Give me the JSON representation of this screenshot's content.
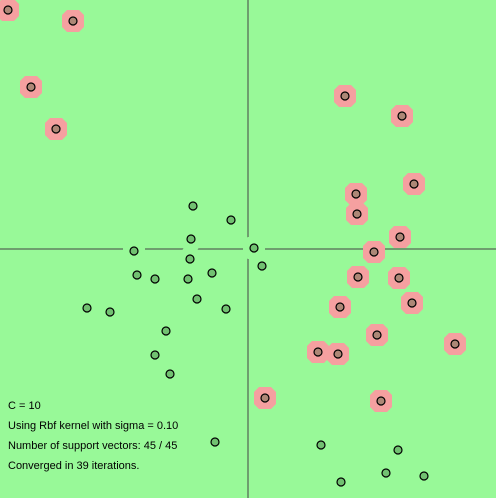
{
  "chart_data": {
    "type": "scatter",
    "background": "#98f998",
    "xlim": [
      -4.96,
      4.96
    ],
    "ylim": [
      -4.98,
      4.98
    ],
    "series": [
      {
        "color": "#f5a0a0",
        "x": [
          -4.8,
          -3.5,
          -4.34,
          -3.84,
          1.94,
          3.08,
          3.32,
          2.16,
          2.18,
          3.04,
          2.52,
          2.2,
          3.02,
          3.28,
          1.84,
          2.58,
          4.14,
          1.4,
          1.8,
          0.34,
          2.66
        ],
        "values": [
          4.78,
          4.56,
          3.24,
          2.4,
          3.06,
          2.66,
          1.3,
          1.1,
          0.7,
          0.24,
          -0.06,
          -0.56,
          -0.58,
          -1.08,
          -1.16,
          -1.72,
          -1.9,
          -2.06,
          -2.1,
          -2.98,
          -3.04
        ]
      },
      {
        "color": "#98f998",
        "x": [
          -1.1,
          -0.34,
          -1.14,
          -2.28,
          0.12,
          -1.16,
          0.28,
          -2.22,
          -1.86,
          -0.72,
          -1.2,
          -1.02,
          -3.22,
          -2.76,
          -0.44,
          -1.64,
          -1.86,
          -1.56,
          -0.66,
          1.46,
          3.0,
          2.76,
          3.52,
          1.86
        ],
        "values": [
          0.86,
          0.58,
          0.2,
          -0.04,
          0.02,
          -0.2,
          -0.34,
          -0.52,
          -0.6,
          -0.48,
          -0.6,
          -1.0,
          -1.18,
          -1.26,
          -1.2,
          -1.64,
          -2.12,
          -2.5,
          -3.86,
          -3.92,
          -4.02,
          -4.48,
          -4.54,
          -4.66
        ]
      }
    ],
    "annotations": [
      "C = 10",
      "Using Rbf kernel with sigma = 0.10",
      "Number of support vectors: 45 / 45",
      "Converged in 39 iterations."
    ]
  }
}
